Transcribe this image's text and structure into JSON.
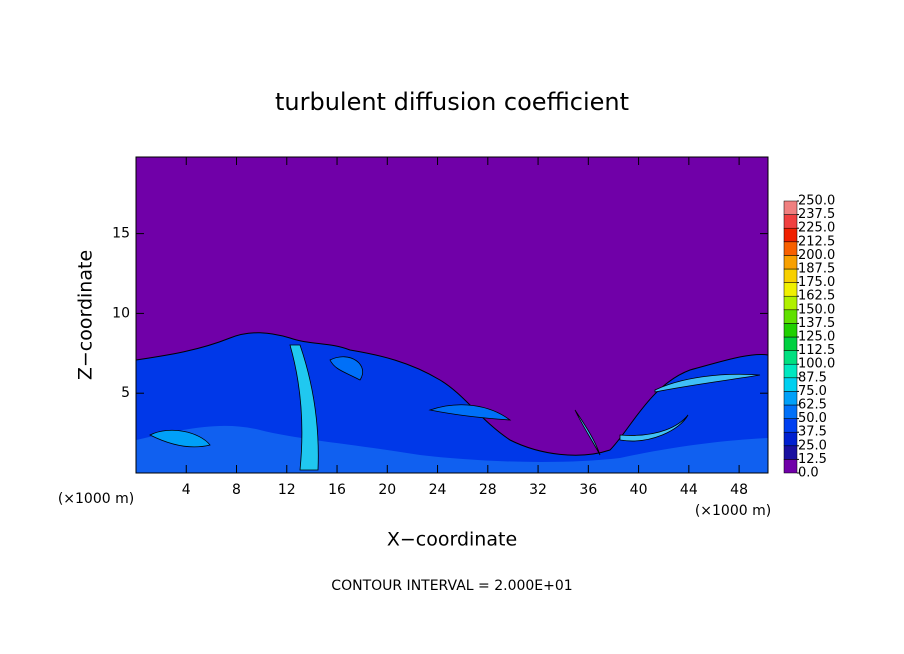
{
  "chart_data": {
    "type": "contour",
    "title": "turbulent diffusion coefficient",
    "x_label": "X−coordinate",
    "y_label": "Z−coordinate",
    "x_unit": "(×1000 m)",
    "x_unit_right": "(×1000 m)",
    "footnote": "CONTOUR INTERVAL = 2.000E+01",
    "xlim": [
      0,
      50.3
    ],
    "ylim": [
      0,
      19.8
    ],
    "xticks": [
      4,
      8,
      12,
      16,
      20,
      24,
      28,
      32,
      36,
      40,
      44,
      48
    ],
    "yticks": [
      5,
      10,
      15
    ],
    "colorbar": {
      "ticks": [
        {
          "value": 0,
          "label": "0.0"
        },
        {
          "value": 12.5,
          "label": "12.5"
        },
        {
          "value": 25,
          "label": "25.0"
        },
        {
          "value": 37.5,
          "label": "37.5"
        },
        {
          "value": 50,
          "label": "50.0"
        },
        {
          "value": 62.5,
          "label": "62.5"
        },
        {
          "value": 75,
          "label": "75.0"
        },
        {
          "value": 87.5,
          "label": "87.5"
        },
        {
          "value": 100,
          "label": "100.0"
        },
        {
          "value": 112.5,
          "label": "112.5"
        },
        {
          "value": 125,
          "label": "125.0"
        },
        {
          "value": 137.5,
          "label": "137.5"
        },
        {
          "value": 150,
          "label": "150.0"
        },
        {
          "value": 162.5,
          "label": "162.5"
        },
        {
          "value": 175,
          "label": "175.0"
        },
        {
          "value": 187.5,
          "label": "187.5"
        },
        {
          "value": 200,
          "label": "200.0"
        },
        {
          "value": 212.5,
          "label": "212.5"
        },
        {
          "value": 225,
          "label": "225.0"
        },
        {
          "value": 237.5,
          "label": "237.5"
        },
        {
          "value": 250,
          "label": "250.0"
        }
      ],
      "colors": [
        "#7000a8",
        "#1a10a0",
        "#0020d0",
        "#0040f0",
        "#0070f8",
        "#00a0f8",
        "#00d0f0",
        "#00e8c0",
        "#00e080",
        "#00d040",
        "#20d000",
        "#60e000",
        "#b0f000",
        "#f0f000",
        "#f8d000",
        "#f8a000",
        "#f86000",
        "#f02000",
        "#f04040",
        "#f08080"
      ]
    }
  }
}
